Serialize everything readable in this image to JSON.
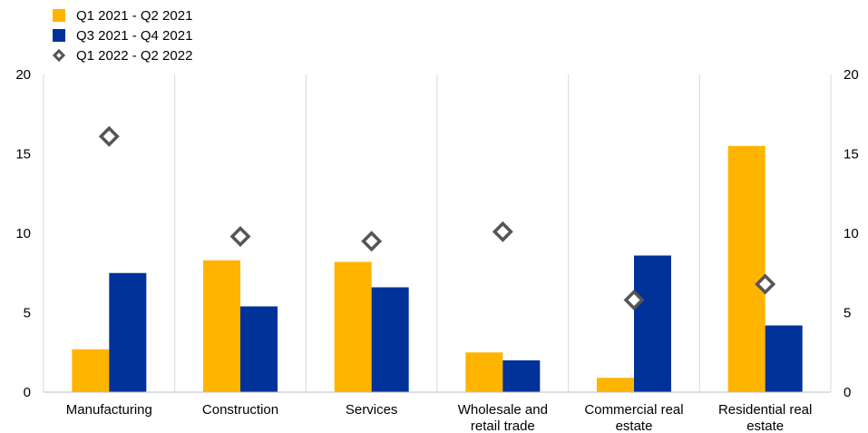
{
  "chart_data": {
    "type": "bar",
    "categories": [
      "Manufacturing",
      "Construction",
      "Services",
      "Wholesale and retail trade",
      "Commercial real estate",
      "Residential real estate"
    ],
    "category_lines": [
      [
        "Manufacturing"
      ],
      [
        "Construction"
      ],
      [
        "Services"
      ],
      [
        "Wholesale and",
        "retail trade"
      ],
      [
        "Commercial real",
        "estate"
      ],
      [
        "Residential real",
        "estate"
      ]
    ],
    "series": [
      {
        "name": "Q1 2021 - Q2 2021",
        "kind": "bar",
        "color": "#FFB400",
        "values": [
          2.7,
          8.3,
          8.2,
          2.5,
          0.9,
          15.5
        ]
      },
      {
        "name": "Q3 2021 - Q4 2021",
        "kind": "bar",
        "color": "#003299",
        "values": [
          7.5,
          5.4,
          6.6,
          2.0,
          8.6,
          4.2
        ]
      },
      {
        "name": "Q1 2022 - Q2 2022",
        "kind": "diamond",
        "color": "#555555",
        "values": [
          16.1,
          9.8,
          9.5,
          10.1,
          5.8,
          6.8
        ]
      }
    ],
    "ylim": [
      0,
      20
    ],
    "yticks": [
      0,
      5,
      10,
      15,
      20
    ],
    "y_axis_left_labels": [
      "0",
      "5",
      "10",
      "15",
      "20"
    ],
    "y_axis_right_labels": [
      "0",
      "5",
      "10",
      "15",
      "20"
    ],
    "legend_position": "top-left",
    "grid": "vertical category separators"
  }
}
